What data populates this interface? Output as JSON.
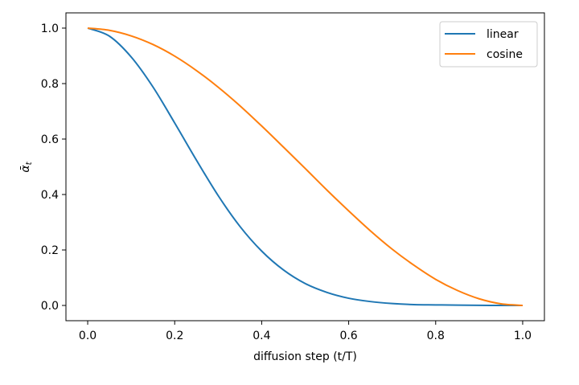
{
  "chart_data": {
    "type": "line",
    "title": "",
    "xlabel": "diffusion step (t/T)",
    "ylabel": "ᾱ_t",
    "xlim": [
      -0.05,
      1.05
    ],
    "ylim": [
      -0.055,
      1.055
    ],
    "xticks": [
      "0.0",
      "0.2",
      "0.4",
      "0.6",
      "0.8",
      "1.0"
    ],
    "yticks": [
      "0.0",
      "0.2",
      "0.4",
      "0.6",
      "0.8",
      "1.0"
    ],
    "grid": false,
    "legend_position": "top-right",
    "x": [
      0,
      0.05,
      0.1,
      0.15,
      0.2,
      0.25,
      0.3,
      0.35,
      0.4,
      0.45,
      0.5,
      0.55,
      0.6,
      0.65,
      0.7,
      0.75,
      0.8,
      0.85,
      0.9,
      0.95,
      1.0
    ],
    "series": [
      {
        "name": "linear",
        "color": "#1f77b4",
        "values": [
          1,
          0.971,
          0.896,
          0.788,
          0.658,
          0.524,
          0.396,
          0.285,
          0.196,
          0.128,
          0.079,
          0.047,
          0.026,
          0.014,
          0.007,
          0.003,
          0.002,
          0.001,
          0.0003,
          0.0001,
          0
        ]
      },
      {
        "name": "cosine",
        "color": "#ff7f0e",
        "values": [
          1,
          0.992,
          0.972,
          0.941,
          0.899,
          0.847,
          0.787,
          0.72,
          0.647,
          0.571,
          0.494,
          0.416,
          0.341,
          0.269,
          0.203,
          0.145,
          0.094,
          0.054,
          0.024,
          0.006,
          0
        ]
      }
    ]
  }
}
